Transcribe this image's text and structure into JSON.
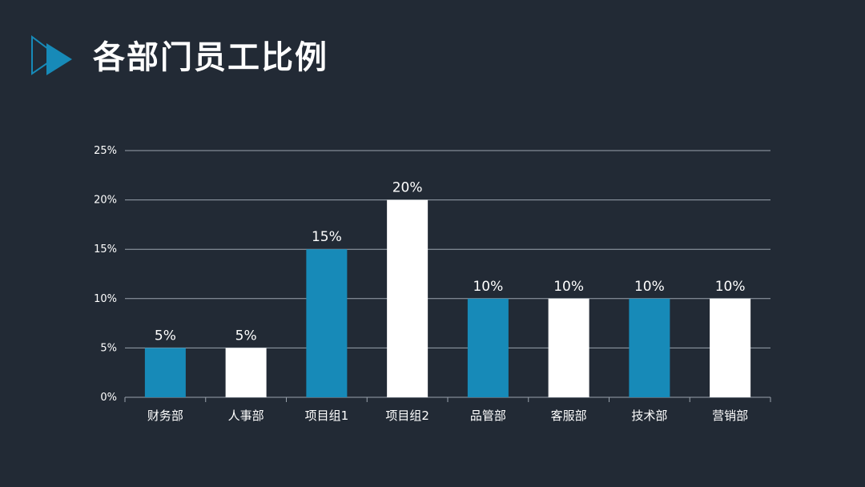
{
  "slide": {
    "title": "各部门员工比例",
    "logo_icon": "play-triangle-icon"
  },
  "colors": {
    "background": "#222a35",
    "accent_blue": "#178ab8",
    "white": "#ffffff",
    "grid": "#9aa3ad"
  },
  "chart_data": {
    "type": "bar",
    "title": "",
    "xlabel": "",
    "ylabel": "",
    "categories": [
      "财务部",
      "人事部",
      "项目组1",
      "项目组2",
      "品管部",
      "客服部",
      "技术部",
      "营销部"
    ],
    "values": [
      5,
      5,
      15,
      20,
      10,
      10,
      10,
      10
    ],
    "data_labels": [
      "5%",
      "5%",
      "15%",
      "20%",
      "10%",
      "10%",
      "10%",
      "10%"
    ],
    "bar_colors": [
      "#178ab8",
      "#ffffff",
      "#178ab8",
      "#ffffff",
      "#178ab8",
      "#ffffff",
      "#178ab8",
      "#ffffff"
    ],
    "ylim": [
      0,
      25
    ],
    "yticks": [
      0,
      5,
      10,
      15,
      20,
      25
    ],
    "ytick_labels": [
      "0%",
      "5%",
      "10%",
      "15%",
      "20%",
      "25%"
    ],
    "grid": true,
    "legend": "none"
  }
}
